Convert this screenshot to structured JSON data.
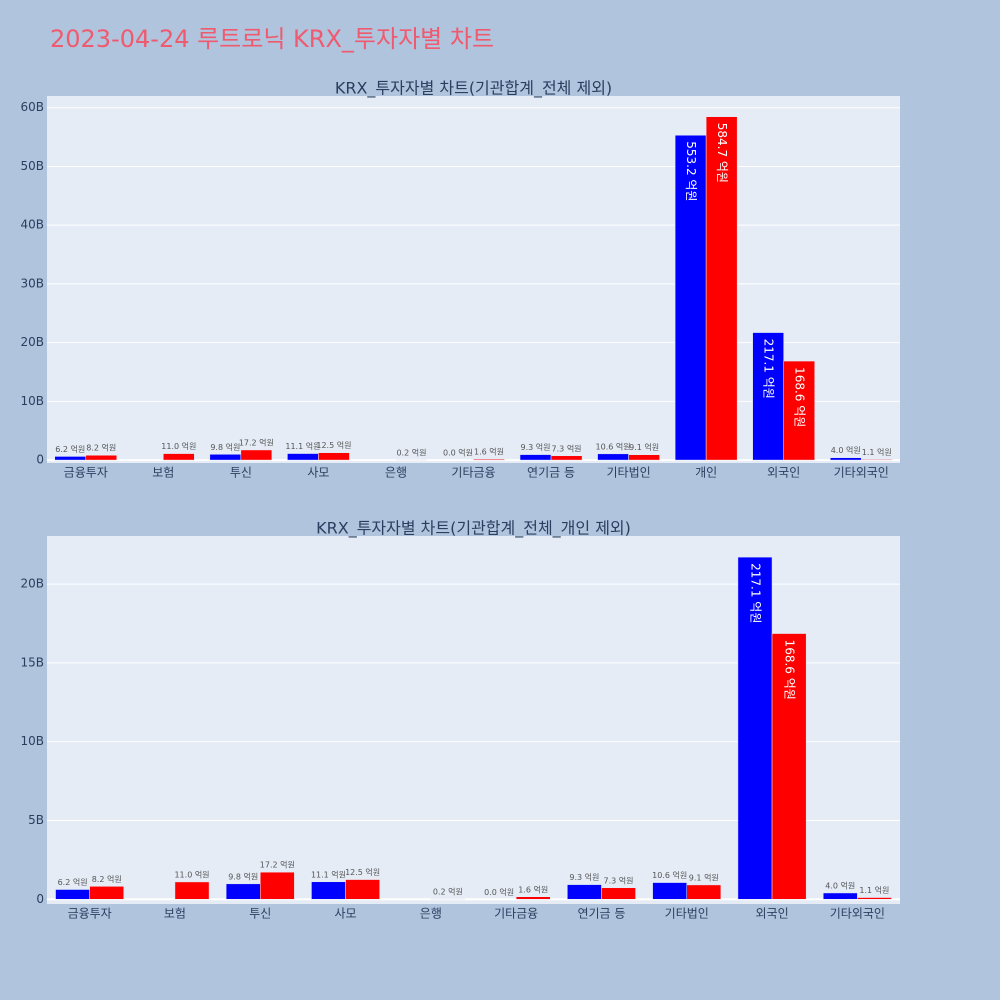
{
  "title": "2023-04-24 루트로닉 KRX_투자자별 차트",
  "chart_data": [
    {
      "type": "bar",
      "title": "KRX_투자자별 차트(기관합계_전체 제외)",
      "categories": [
        "금융투자",
        "보험",
        "투신",
        "사모",
        "은행",
        "기타금융",
        "연기금 등",
        "기타법인",
        "개인",
        "외국인",
        "기타외국인"
      ],
      "series": [
        {
          "color": "#0000ff",
          "values": [
            0.62,
            null,
            0.98,
            1.11,
            null,
            0.0,
            0.93,
            1.06,
            55.32,
            21.71,
            0.4
          ],
          "value_labels": [
            "6.2 억원",
            null,
            "9.8 억원",
            "11.1 억원",
            null,
            "0.0 억원",
            "9.3 억원",
            "10.6 억원",
            "553.2 억원",
            "217.1 억원",
            "4.0 억원"
          ]
        },
        {
          "color": "#ff0000",
          "values": [
            0.82,
            1.1,
            1.72,
            1.25,
            0.02,
            0.16,
            0.73,
            0.91,
            58.47,
            16.86,
            0.11
          ],
          "value_labels": [
            "8.2 억원",
            "11.0 억원",
            "17.2 억원",
            "12.5 억원",
            "0.2 억원",
            "1.6 억원",
            "7.3 억원",
            "9.1 억원",
            "584.7 억원",
            "168.6 억원",
            "1.1 억원"
          ]
        }
      ],
      "ylim": [
        -0.5,
        62
      ],
      "yticks": [
        0,
        {
          "value": 10,
          "label": "10B"
        },
        {
          "value": 20,
          "label": "20B"
        },
        {
          "value": 30,
          "label": "30B"
        },
        {
          "value": 40,
          "label": "40B"
        },
        {
          "value": 50,
          "label": "50B"
        },
        {
          "value": 60,
          "label": "60B"
        }
      ],
      "grid": true
    },
    {
      "type": "bar",
      "title": "KRX_투자자별 차트(기관합계_전체_개인 제외)",
      "categories": [
        "금융투자",
        "보험",
        "투신",
        "사모",
        "은행",
        "기타금융",
        "연기금 등",
        "기타법인",
        "외국인",
        "기타외국인"
      ],
      "series": [
        {
          "color": "#0000ff",
          "values": [
            0.62,
            null,
            0.98,
            1.11,
            null,
            0.0,
            0.93,
            1.06,
            21.71,
            0.4
          ],
          "value_labels": [
            "6.2 억원",
            null,
            "9.8 억원",
            "11.1 억원",
            null,
            "0.0 억원",
            "9.3 억원",
            "10.6 억원",
            "217.1 억원",
            "4.0 억원"
          ]
        },
        {
          "color": "#ff0000",
          "values": [
            0.82,
            1.1,
            1.72,
            1.25,
            0.02,
            0.16,
            0.73,
            0.91,
            16.86,
            0.11
          ],
          "value_labels": [
            "8.2 억원",
            "11.0 억원",
            "17.2 억원",
            "12.5 억원",
            "0.2 억원",
            "1.6 억원",
            "7.3 억원",
            "9.1 억원",
            "168.6 억원",
            "1.1 억원"
          ]
        }
      ],
      "ylim": [
        -0.3,
        23.05
      ],
      "yticks": [
        0,
        {
          "value": 5,
          "label": "5B"
        },
        {
          "value": 10,
          "label": "10B"
        },
        {
          "value": 15,
          "label": "15B"
        },
        {
          "value": 20,
          "label": "20B"
        }
      ],
      "grid": true
    }
  ]
}
